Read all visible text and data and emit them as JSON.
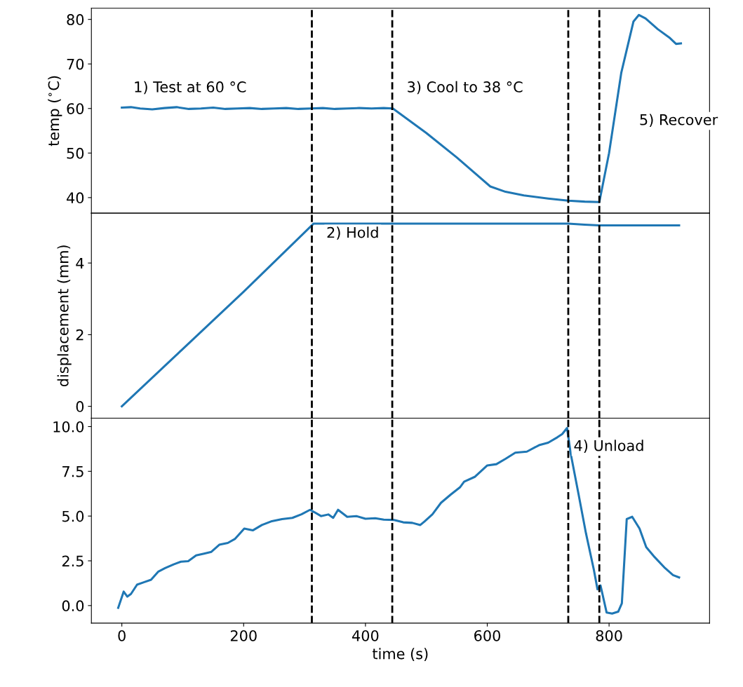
{
  "chart_data": [
    {
      "type": "line",
      "ylabel": "temp ($^{∘}$C)",
      "tick_labels": "y",
      "xlim": [
        -50,
        965
      ],
      "ylim": [
        36.5,
        82.5
      ],
      "yticks": [
        40,
        50,
        60,
        70,
        80
      ],
      "xticks": [
        0,
        200,
        400,
        600,
        800
      ],
      "grid": false,
      "legend": false,
      "series": [
        {
          "color": "#1f77b4",
          "x": [
            0,
            15,
            30,
            50,
            70,
            90,
            110,
            130,
            150,
            170,
            190,
            210,
            230,
            250,
            270,
            290,
            310,
            330,
            350,
            370,
            390,
            410,
            430,
            445,
            500,
            550,
            605,
            630,
            660,
            700,
            733,
            760,
            784,
            800,
            820,
            840,
            849,
            860,
            880,
            900,
            910,
            918
          ],
          "values": [
            60.2,
            60.3,
            60.0,
            59.8,
            60.1,
            60.3,
            59.9,
            60.0,
            60.2,
            59.9,
            60.0,
            60.1,
            59.9,
            60.0,
            60.1,
            59.9,
            60.0,
            60.1,
            59.9,
            60.0,
            60.1,
            60.0,
            60.1,
            60.0,
            54.5,
            49.0,
            42.5,
            41.3,
            40.5,
            39.8,
            39.3,
            39.1,
            39.0,
            50.0,
            68.0,
            79.5,
            81.0,
            80.2,
            77.8,
            75.8,
            74.5,
            74.6
          ]
        }
      ],
      "ref_lines": [
        {
          "axis": "x",
          "value": 312,
          "color": "#000000",
          "line_style": "dashed"
        },
        {
          "axis": "x",
          "value": 444,
          "color": "#000000",
          "line_style": "dashed"
        },
        {
          "axis": "x",
          "value": 733,
          "color": "#000000",
          "line_style": "dashed"
        },
        {
          "axis": "x",
          "value": 784,
          "color": "#000000",
          "line_style": "dashed"
        }
      ],
      "annotations": [
        "1) Test at 60 °C",
        "3) Cool to 38 °C",
        "5) Recover"
      ]
    },
    {
      "type": "line",
      "ylabel": "displacement (mm)",
      "tick_labels": "y",
      "xlim": [
        -50,
        965
      ],
      "ylim": [
        -0.33,
        5.39
      ],
      "yticks": [
        0,
        2,
        4
      ],
      "xticks": [
        0,
        200,
        400,
        600,
        800
      ],
      "grid": false,
      "legend": false,
      "series": [
        {
          "color": "#1f77b4",
          "x": [
            0,
            100,
            200,
            315,
            445,
            600,
            733,
            760,
            784,
            850,
            915
          ],
          "values": [
            0.0,
            1.6,
            3.2,
            5.1,
            5.1,
            5.1,
            5.1,
            5.07,
            5.05,
            5.05,
            5.05
          ]
        }
      ],
      "ref_lines": [
        {
          "axis": "x",
          "value": 312,
          "color": "#000000",
          "line_style": "dashed"
        },
        {
          "axis": "x",
          "value": 444,
          "color": "#000000",
          "line_style": "dashed"
        },
        {
          "axis": "x",
          "value": 733,
          "color": "#000000",
          "line_style": "dashed"
        },
        {
          "axis": "x",
          "value": 784,
          "color": "#000000",
          "line_style": "dashed"
        }
      ],
      "annotations": [
        "2) Hold"
      ]
    },
    {
      "type": "line",
      "xlabel": "time (s)",
      "xlim": [
        -50,
        965
      ],
      "ylim": [
        -0.98,
        10.47
      ],
      "yticks": [
        {
          "value": 0,
          "label": "0.0"
        },
        {
          "value": 2.5,
          "label": "2.5"
        },
        {
          "value": 5,
          "label": "5.0"
        },
        {
          "value": 7.5,
          "label": "7.5"
        },
        {
          "value": 10,
          "label": "10.0"
        }
      ],
      "xticks": [
        0,
        200,
        400,
        600,
        800
      ],
      "grid": false,
      "legend": false,
      "series": [
        {
          "color": "#1f77b4",
          "x": [
            -6,
            3,
            9,
            15,
            25,
            36,
            48,
            60,
            71,
            85,
            97,
            109,
            122,
            135,
            147,
            160,
            174,
            186,
            201,
            215,
            230,
            245,
            263,
            280,
            295,
            309,
            316,
            327,
            339,
            347,
            355,
            370,
            385,
            400,
            416,
            430,
            447,
            462,
            477,
            490,
            497,
            510,
            524,
            540,
            555,
            562,
            580,
            600,
            615,
            630,
            646,
            665,
            685,
            700,
            715,
            723,
            731,
            737,
            750,
            762,
            775,
            781,
            786,
            796,
            805,
            815,
            821,
            829,
            838,
            850,
            861,
            875,
            892,
            905,
            915
          ],
          "values": [
            -0.13,
            0.78,
            0.5,
            0.65,
            1.17,
            1.3,
            1.44,
            1.9,
            2.09,
            2.3,
            2.45,
            2.48,
            2.8,
            2.9,
            3.0,
            3.4,
            3.5,
            3.73,
            4.3,
            4.2,
            4.5,
            4.7,
            4.83,
            4.9,
            5.1,
            5.35,
            5.22,
            5.0,
            5.09,
            4.9,
            5.35,
            4.96,
            5.0,
            4.85,
            4.88,
            4.8,
            4.78,
            4.65,
            4.62,
            4.5,
            4.7,
            5.1,
            5.74,
            6.2,
            6.6,
            6.92,
            7.2,
            7.83,
            7.9,
            8.2,
            8.54,
            8.6,
            8.96,
            9.1,
            9.4,
            9.58,
            9.92,
            8.49,
            6.2,
            4.05,
            2.0,
            0.91,
            1.12,
            -0.39,
            -0.45,
            -0.34,
            0.13,
            4.83,
            4.96,
            4.3,
            3.26,
            2.7,
            2.09,
            1.7,
            1.57
          ]
        }
      ],
      "ref_lines": [
        {
          "axis": "x",
          "value": 312,
          "color": "#000000",
          "line_style": "dashed"
        },
        {
          "axis": "x",
          "value": 444,
          "color": "#000000",
          "line_style": "dashed"
        },
        {
          "axis": "x",
          "value": 733,
          "color": "#000000",
          "line_style": "dashed"
        },
        {
          "axis": "x",
          "value": 784,
          "color": "#000000",
          "line_style": "dashed"
        }
      ],
      "annotations": [
        "4) Unload"
      ]
    }
  ]
}
